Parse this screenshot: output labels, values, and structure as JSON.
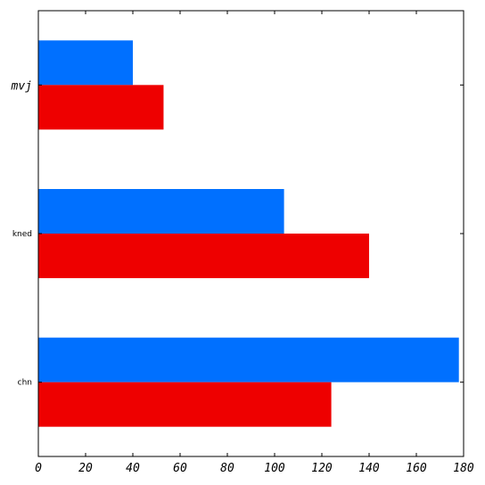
{
  "chart_data": {
    "type": "bar",
    "orientation": "horizontal",
    "categories": [
      "mvj",
      "kned",
      "chn"
    ],
    "series": [
      {
        "values": [
          40,
          104,
          178
        ],
        "color": "#0070ff"
      },
      {
        "values": [
          53,
          140,
          124
        ],
        "color": "#ee0000"
      }
    ],
    "xlim": [
      0,
      180
    ],
    "xticks": [
      "0",
      "20",
      "40",
      "60",
      "80",
      "100",
      "120",
      "140",
      "160",
      "180"
    ],
    "title": "",
    "xlabel": "",
    "ylabel": "",
    "grid": false,
    "legend": "none"
  }
}
